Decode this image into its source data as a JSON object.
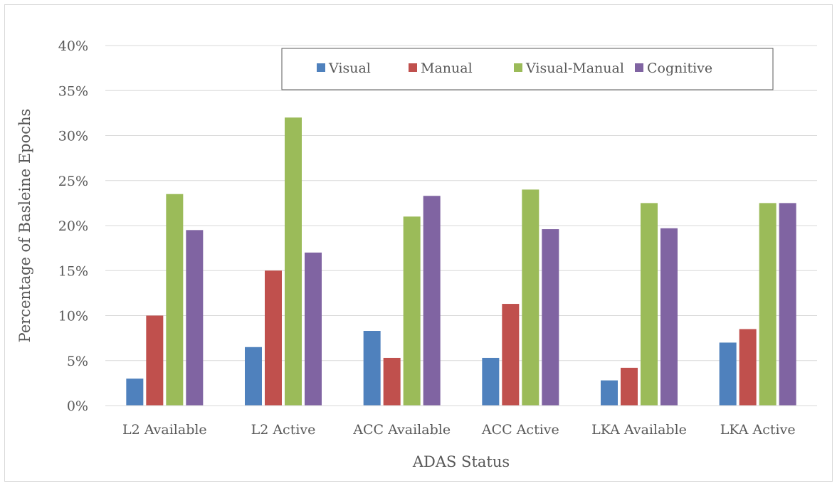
{
  "chart_data": {
    "type": "bar",
    "xlabel": "ADAS Status",
    "ylabel": "Percentage of Basleine Epochs",
    "categories": [
      "L2 Available",
      "L2 Active",
      "ACC Available",
      "ACC Active",
      "LKA Available",
      "LKA Active"
    ],
    "yticks": [
      "0%",
      "5%",
      "10%",
      "15%",
      "20%",
      "25%",
      "30%",
      "35%",
      "40%"
    ],
    "ylim": [
      0,
      40
    ],
    "grid": true,
    "legend_position": "top-center",
    "series": [
      {
        "name": "Visual",
        "color": "#4f81bd",
        "values": [
          3.0,
          6.5,
          8.3,
          5.3,
          2.8,
          7.0
        ]
      },
      {
        "name": "Manual",
        "color": "#c0504d",
        "values": [
          10.0,
          15.0,
          5.3,
          11.3,
          4.2,
          8.5
        ]
      },
      {
        "name": "Visual-Manual",
        "color": "#9bbb59",
        "values": [
          23.5,
          32.0,
          21.0,
          24.0,
          22.5,
          22.5
        ]
      },
      {
        "name": "Cognitive",
        "color": "#8064a2",
        "values": [
          19.5,
          17.0,
          23.3,
          19.6,
          19.7,
          22.5
        ]
      }
    ]
  }
}
